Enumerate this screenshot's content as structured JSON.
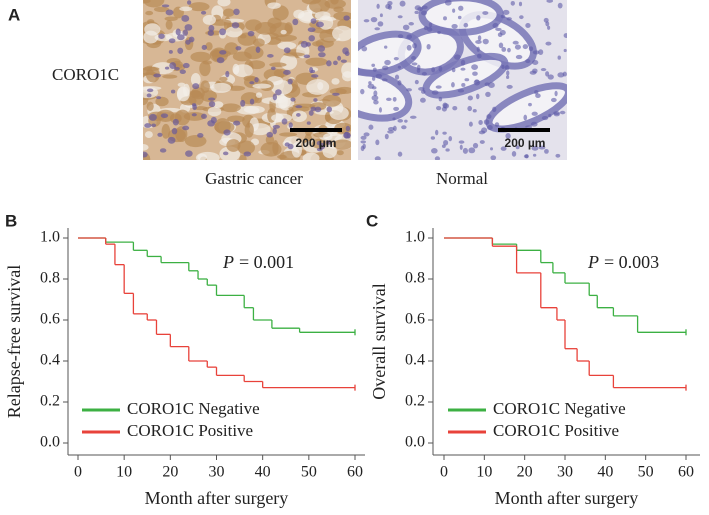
{
  "panel_a": {
    "panel_label": "A",
    "row_label": "CORO1C",
    "images": [
      {
        "caption": "Gastric cancer",
        "scale_bar": "200 µm"
      },
      {
        "caption": "Normal",
        "scale_bar": "200 µm"
      }
    ]
  },
  "chart_data": [
    {
      "type": "step",
      "panel_label": "B",
      "x_label": "Month after surgery",
      "y_label": "Relapse-free survival",
      "annotation_symbol": "P",
      "annotation_text": "= 0.001",
      "xlim": [
        -3,
        63
      ],
      "xticks": [
        0,
        10,
        20,
        30,
        40,
        50,
        60
      ],
      "ylim": [
        -0.06,
        1.04
      ],
      "yticks": [
        {
          "value": 0.0,
          "label": "0.0"
        },
        0.2,
        0.4,
        0.6,
        0.8,
        {
          "value": 1.0,
          "label": "1.0"
        }
      ],
      "series": [
        {
          "name": "CORO1C Negative",
          "color": "#3cb043",
          "x": [
            0,
            6,
            12,
            15,
            18,
            24,
            26,
            28,
            30,
            36,
            38,
            42,
            48,
            60
          ],
          "values": [
            1.0,
            0.98,
            0.94,
            0.91,
            0.88,
            0.84,
            0.8,
            0.77,
            0.72,
            0.66,
            0.6,
            0.56,
            0.54,
            0.54
          ]
        },
        {
          "name": "CORO1C Positive",
          "color": "#e8423a",
          "x": [
            0,
            6,
            8,
            10,
            12,
            15,
            17,
            20,
            24,
            28,
            30,
            36,
            40,
            60
          ],
          "values": [
            1.0,
            0.97,
            0.87,
            0.73,
            0.63,
            0.6,
            0.53,
            0.47,
            0.4,
            0.37,
            0.33,
            0.3,
            0.27,
            0.27
          ]
        }
      ]
    },
    {
      "type": "step",
      "panel_label": "C",
      "x_label": "Month after surgery",
      "y_label": "Overall survival",
      "annotation_symbol": "P",
      "annotation_text": "= 0.003",
      "xlim": [
        -3,
        63
      ],
      "xticks": [
        0,
        10,
        20,
        30,
        40,
        50,
        60
      ],
      "ylim": [
        -0.06,
        1.04
      ],
      "yticks": [
        {
          "value": 0.0,
          "label": "0.0"
        },
        0.2,
        0.4,
        0.6,
        0.8,
        {
          "value": 1.0,
          "label": "1.0"
        }
      ],
      "series": [
        {
          "name": "CORO1C Negative",
          "color": "#3cb043",
          "x": [
            0,
            12,
            18,
            24,
            27,
            30,
            36,
            38,
            42,
            48,
            60
          ],
          "values": [
            1.0,
            0.97,
            0.94,
            0.88,
            0.83,
            0.78,
            0.72,
            0.66,
            0.62,
            0.54,
            0.54
          ]
        },
        {
          "name": "CORO1C Positive",
          "color": "#e8423a",
          "x": [
            0,
            12,
            18,
            24,
            28,
            30,
            33,
            36,
            42,
            60
          ],
          "values": [
            1.0,
            0.96,
            0.83,
            0.66,
            0.6,
            0.46,
            0.4,
            0.33,
            0.27,
            0.27
          ]
        }
      ]
    }
  ]
}
